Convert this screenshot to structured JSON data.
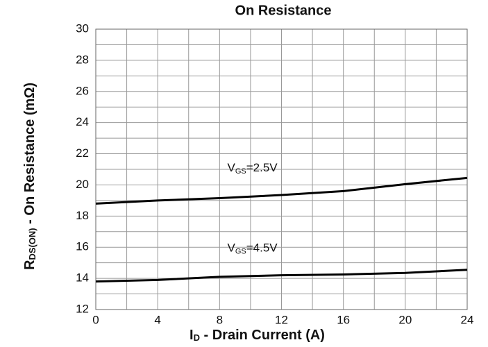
{
  "chart_data": {
    "type": "line",
    "title": "On Resistance",
    "ylabel": {
      "main": "R",
      "sub": "DS(ON)",
      "rest": " - On Resistance (mΩ)"
    },
    "xlabel": {
      "main": "I",
      "sub": "D",
      "rest": " - Drain Current (A)"
    },
    "x": [
      0,
      4,
      8,
      12,
      16,
      20,
      24
    ],
    "series": [
      {
        "name": {
          "main": "V",
          "sub": "GS",
          "rest": "=2.5V"
        },
        "color": "#000000",
        "values": [
          18.8,
          19.0,
          19.15,
          19.35,
          19.6,
          20.05,
          20.45
        ]
      },
      {
        "name": {
          "main": "V",
          "sub": "GS",
          "rest": "=4.5V"
        },
        "color": "#000000",
        "values": [
          13.8,
          13.9,
          14.1,
          14.2,
          14.25,
          14.35,
          14.55
        ]
      }
    ],
    "xlim": [
      0,
      24
    ],
    "xticks": [
      0,
      4,
      8,
      12,
      16,
      20,
      24
    ],
    "minor_xticks": [
      2,
      6,
      10,
      14,
      18,
      22
    ],
    "ylim": [
      12,
      30
    ],
    "yticks": [
      12,
      14,
      16,
      18,
      20,
      22,
      24,
      26,
      28,
      30
    ],
    "minor_yticks": [
      13,
      15,
      17,
      19,
      21,
      23,
      25,
      27,
      29
    ],
    "grid": true
  }
}
